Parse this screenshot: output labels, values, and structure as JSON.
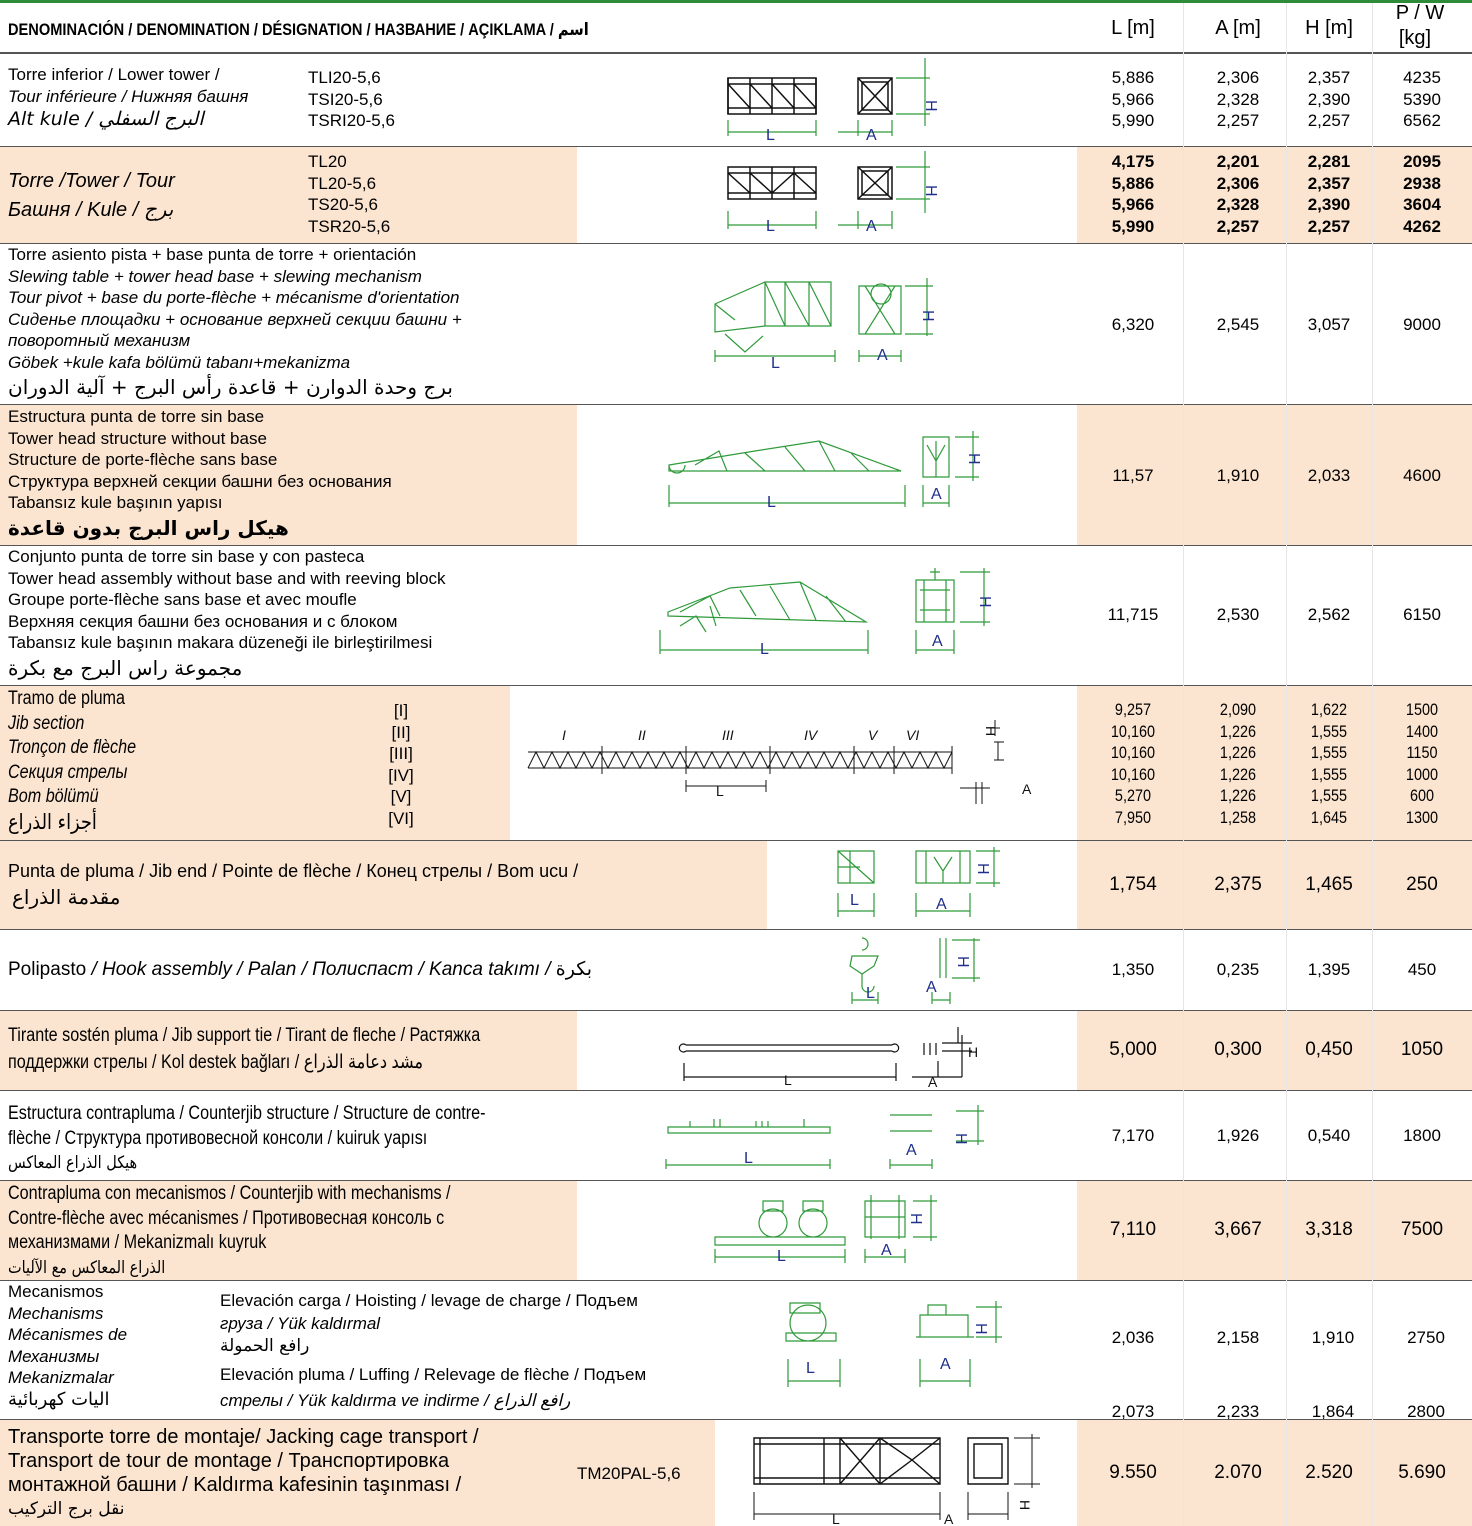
{
  "header": {
    "denomination": "DENOMINACIÓN / DENOMINATION / DÉSIGNATION / НАЗВАНИЕ / AÇIKLAMA / اسم",
    "col_l": "L [m]",
    "col_a": "A [m]",
    "col_h": "H [m]",
    "col_p_top": "P / W",
    "col_p_unit": "[kg]"
  },
  "rows": [
    {
      "name_lines": [
        "Torre inferior / Lower tower /",
        "Tour inférieure / Нижняя башня",
        "Alt kule / البرج السفلي"
      ],
      "codes": [
        "TLI20-5,6",
        "TSI20-5,6",
        "TSRI20-5,6"
      ],
      "L": [
        "5,886",
        "5,966",
        "5,990"
      ],
      "A": [
        "2,306",
        "2,328",
        "2,257"
      ],
      "H": [
        "2,357",
        "2,390",
        "2,257"
      ],
      "P": [
        "4235",
        "5390",
        "6562"
      ]
    },
    {
      "name_lines": [
        "Torre  /Tower / Tour",
        "Башня / Kule / برج"
      ],
      "codes": [
        "TL20",
        "TL20-5,6",
        "TS20-5,6",
        "TSR20-5,6"
      ],
      "L": [
        "4,175",
        "5,886",
        "5,966",
        "5,990"
      ],
      "A": [
        "2,201",
        "2,306",
        "2,328",
        "2,257"
      ],
      "H": [
        "2,281",
        "2,357",
        "2,390",
        "2,257"
      ],
      "P": [
        "2095",
        "2938",
        "3604",
        "4262"
      ]
    },
    {
      "name_lines": [
        "Torre asiento pista + base punta de torre + orientación",
        "Slewing table + tower head base + slewing mechanism",
        "Tour pivot + base du porte-flèche + mécanisme d'orientation",
        "Сиденье площадки + основание верхней секции башни +",
        "поворотный механизм",
        "Göbek +kule kafa bölümü tabanı+mekanizma",
        "برج وحدة الدوارن + قاعدة رأس البرج + آلية الدوران"
      ],
      "L": [
        "6,320"
      ],
      "A": [
        "2,545"
      ],
      "H": [
        "3,057"
      ],
      "P": [
        "9000"
      ]
    },
    {
      "name_lines": [
        "Estructura punta de torre sin base",
        "Tower head structure without base",
        "Structure de porte-flèche sans base",
        "Структура верхней секции башни без основания",
        "Tabansız kule başının yapısı",
        "هيكل راس البرج بدون قاعدة"
      ],
      "L": [
        "11,57"
      ],
      "A": [
        "1,910"
      ],
      "H": [
        "2,033"
      ],
      "P": [
        "4600"
      ]
    },
    {
      "name_lines": [
        "Conjunto punta de torre sin base y con pasteca",
        "Tower head assembly without base and with reeving block",
        "Groupe porte-flèche sans base et avec moufle",
        "Верхняя секция башни без основания и с блоком",
        "Tabansız kule başının makara düzeneği ile birleştirilmesi",
        "مجموعة راس البرج مع بكرة"
      ],
      "L": [
        "11,715"
      ],
      "A": [
        "2,530"
      ],
      "H": [
        "2,562"
      ],
      "P": [
        "6150"
      ]
    },
    {
      "name_lines": [
        "Tramo de pluma",
        "Jib section",
        "Tronçon de flèche",
        "Секция стрелы",
        "Bom bölümü",
        "أجزاء الذراع"
      ],
      "codes": [
        "[I]",
        "[II]",
        "[III]",
        "[IV]",
        "[V]",
        "[VI]"
      ],
      "section_labels": [
        "I",
        "II",
        "III",
        "IV",
        "V",
        "VI"
      ],
      "L": [
        "9,257",
        "10,160",
        "10,160",
        "10,160",
        "5,270",
        "7,950"
      ],
      "A": [
        "2,090",
        "1,226",
        "1,226",
        "1,226",
        "1,226",
        "1,258"
      ],
      "H": [
        "1,622",
        "1,555",
        "1,555",
        "1,555",
        "1,555",
        "1,645"
      ],
      "P": [
        "1500",
        "1400",
        "1150",
        "1000",
        "600",
        "1300"
      ]
    },
    {
      "name_lines": [
        "Punta de pluma / Jib end / Pointe de flèche / Конец стрелы / Bom ucu /",
        "مقدمة الذراع"
      ],
      "L": [
        "1,754"
      ],
      "A": [
        "2,375"
      ],
      "H": [
        "1,465"
      ],
      "P": [
        "250"
      ]
    },
    {
      "name_lines": [
        "Polipasto",
        " / Hook assembly / Palan / Полиспаст / Kanca takımı / ",
        "بكرة"
      ],
      "L": [
        "1,350"
      ],
      "A": [
        "0,235"
      ],
      "H": [
        "1,395"
      ],
      "P": [
        "450"
      ]
    },
    {
      "name_lines": [
        "Tirante sostén pluma / Jib support tie / Tirant de fleche / Растяжка",
        "поддержки стрелы / Kol destek bağları / مشد دعامة الذراع"
      ],
      "L": [
        "5,000"
      ],
      "A": [
        "0,300"
      ],
      "H": [
        "0,450"
      ],
      "P": [
        "1050"
      ]
    },
    {
      "name_lines": [
        "Estructura contrapluma / Counterjib structure / Structure de contre-",
        "flèche / Структура противовесной консоли / kuiruk yapısı",
        "هيكل الذراع المعاكس"
      ],
      "L": [
        "7,170"
      ],
      "A": [
        "1,926"
      ],
      "H": [
        "0,540"
      ],
      "P": [
        "1800"
      ]
    },
    {
      "name_lines": [
        "Contrapluma con mecanismos / Counterjib with mechanisms /",
        "Contre-flèche avec mécanismes / Противовесная консоль с",
        "механизмами / Mekanizmalı kuyruk",
        "الذراع المعاكس مع الآليات"
      ],
      "L": [
        "7,110"
      ],
      "A": [
        "3,667"
      ],
      "H": [
        "3,318"
      ],
      "P": [
        "7500"
      ]
    },
    {
      "name_lines": [
        "Mecanismos",
        "Mechanisms",
        "Mécanismes de",
        "Механизмы",
        "Mekanizmalar",
        "اليات كهربائية"
      ],
      "sub1_lines": [
        "Elevación carga / Hoisting /  levage de charge / Подъем",
        "груза / Yük kaldırmal",
        "رافع الحمولة"
      ],
      "sub2_lines": [
        "Elevación pluma / Luffing / Relevage de flèche / Подъем",
        "стрелы / Yük kaldırma ve indirme / رافع الذراع"
      ],
      "L": [
        "2,036",
        "2,073"
      ],
      "A": [
        "2,158",
        "2,233"
      ],
      "H": [
        "1,910",
        "1,864"
      ],
      "P": [
        "2750",
        "2800"
      ]
    },
    {
      "name_lines": [
        "Transporte torre de montaje/  Jacking cage transport /",
        "Transport de tour de montage / Транспортировка",
        "монтажной башни / Kaldırma kafesinin taşınması /",
        "نقل برج التركيب"
      ],
      "codes": [
        "TM20PAL-5,6"
      ],
      "L": [
        "9.550"
      ],
      "A": [
        "2.070"
      ],
      "H": [
        "2.520"
      ],
      "P": [
        "5.690"
      ]
    }
  ],
  "dim_labels": {
    "l": "L",
    "a": "A",
    "h": "H"
  },
  "colors": {
    "shade": "#fbe5d0",
    "drawing_green": "#2f9a3a",
    "dim_blue": "#1f2f8a",
    "top_rule": "#2e8b3a"
  }
}
